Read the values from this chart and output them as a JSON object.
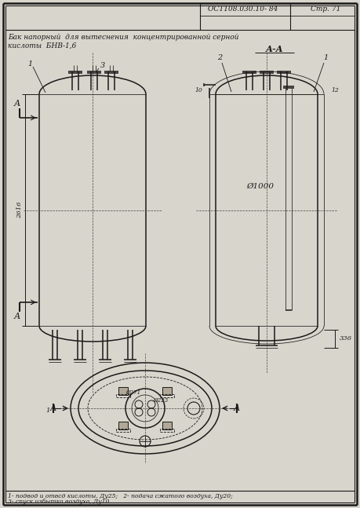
{
  "bg_color": "#d8d5cc",
  "line_color": "#1a1a1a",
  "title_line1": "Бак напорный  для вытеснения  концентрированной серной",
  "title_line2": "кислоты  БНВ-1,6",
  "header_std": "ОСТ108.030.10- 84",
  "header_page": "Стр. 71",
  "section_label": "А-А",
  "dim_height": "2616",
  "dim_diam": "Ø1000",
  "dim_leg": "336",
  "legend1": "1- подвод и отвсд кислоты, Ду25;   2- подача сжатого воздуха, Ду20;",
  "legend2": "3- спуск избытка воздуха, Ду10.",
  "lw_main": 1.1,
  "lw_thin": 0.55,
  "lw_thick": 1.8,
  "lw_dim": 0.7
}
